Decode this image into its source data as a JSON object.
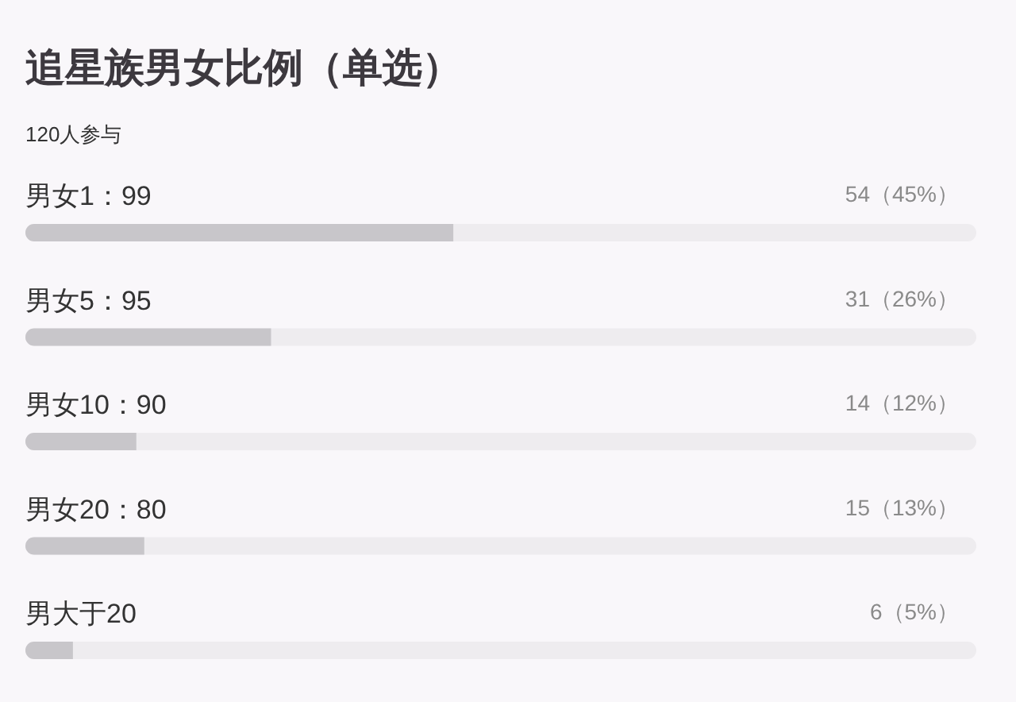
{
  "chart_data": {
    "type": "bar",
    "orientation": "horizontal",
    "title": "追星族男女比例（单选）",
    "subtitle": "120人参与",
    "categories": [
      "男女1：99",
      "男女5：95",
      "男女10：90",
      "男女20：80",
      "男大于20"
    ],
    "values": [
      54,
      31,
      14,
      15,
      6
    ],
    "value_labels": [
      "54（45%）",
      "31（26%）",
      "14（12%）",
      "15（13%）",
      "6（5%）"
    ],
    "color": "#c8c6ca",
    "xlim": [
      0,
      120
    ],
    "tick_labels": "y"
  }
}
